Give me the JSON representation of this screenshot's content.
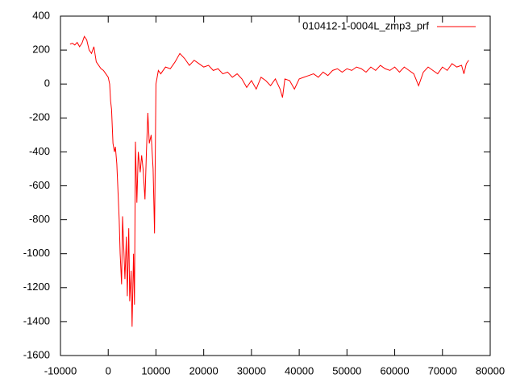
{
  "chart_data": {
    "type": "line",
    "x": [
      -8000,
      -7500,
      -7000,
      -6500,
      -6000,
      -5500,
      -5000,
      -4500,
      -4000,
      -3500,
      -3000,
      -2500,
      -2000,
      -1500,
      -1000,
      -500,
      0,
      300,
      500,
      700,
      1000,
      1300,
      1500,
      1800,
      2000,
      2300,
      2500,
      2800,
      3000,
      3300,
      3500,
      3800,
      4000,
      4300,
      4500,
      4800,
      5000,
      5300,
      5500,
      5700,
      6000,
      6300,
      6700,
      7000,
      7300,
      7700,
      8000,
      8300,
      8600,
      9000,
      9400,
      9700,
      10000,
      10500,
      11000,
      12000,
      13000,
      14000,
      15000,
      16000,
      17000,
      18000,
      19000,
      20000,
      21000,
      22000,
      23000,
      24000,
      25000,
      26000,
      27000,
      28000,
      29000,
      30000,
      31000,
      32000,
      33000,
      34000,
      35000,
      36000,
      36500,
      37000,
      38000,
      39000,
      40000,
      41000,
      42000,
      43000,
      44000,
      45000,
      46000,
      47000,
      48000,
      49000,
      50000,
      51000,
      52000,
      53000,
      54000,
      55000,
      56000,
      57000,
      58000,
      59000,
      60000,
      61000,
      62000,
      63000,
      64000,
      65000,
      66000,
      67000,
      68000,
      69000,
      70000,
      71000,
      72000,
      73000,
      74000,
      74500,
      75000,
      75500
    ],
    "series": [
      {
        "name": "010412-1-0004L_zmp3_prf",
        "color": "#ff0000",
        "values": [
          235,
          240,
          230,
          245,
          220,
          240,
          280,
          260,
          200,
          180,
          220,
          130,
          110,
          90,
          80,
          60,
          40,
          0,
          -100,
          -150,
          -350,
          -400,
          -370,
          -470,
          -600,
          -800,
          -1000,
          -1180,
          -780,
          -1000,
          -1150,
          -900,
          -1250,
          -850,
          -1280,
          -1100,
          -1430,
          -1000,
          -1300,
          -340,
          -700,
          -400,
          -520,
          -420,
          -500,
          -680,
          -400,
          -170,
          -350,
          -300,
          -500,
          -880,
          0,
          80,
          60,
          100,
          90,
          130,
          180,
          150,
          110,
          140,
          120,
          100,
          110,
          80,
          90,
          60,
          70,
          40,
          60,
          30,
          -20,
          20,
          -30,
          40,
          20,
          -10,
          30,
          -30,
          -80,
          30,
          20,
          -30,
          30,
          40,
          50,
          60,
          40,
          70,
          50,
          80,
          90,
          70,
          90,
          80,
          100,
          90,
          70,
          100,
          80,
          110,
          90,
          80,
          100,
          70,
          100,
          80,
          60,
          -10,
          70,
          100,
          80,
          60,
          100,
          80,
          120,
          100,
          110,
          60,
          120,
          140
        ]
      }
    ],
    "xlim": [
      -10000,
      80000
    ],
    "ylim": [
      -1600,
      400
    ],
    "xticks": [
      -10000,
      0,
      10000,
      20000,
      30000,
      40000,
      50000,
      60000,
      70000,
      80000
    ],
    "yticks": [
      -1600,
      -1400,
      -1200,
      -1000,
      -800,
      -600,
      -400,
      -200,
      0,
      200,
      400
    ],
    "legend": "top-right"
  }
}
